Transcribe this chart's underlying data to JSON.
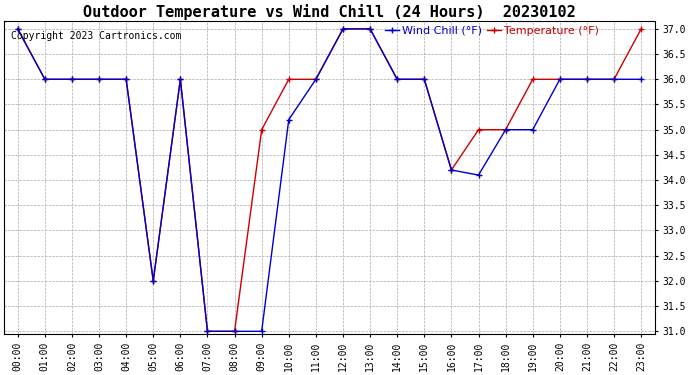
{
  "title": "Outdoor Temperature vs Wind Chill (24 Hours)  20230102",
  "copyright_text": "Copyright 2023 Cartronics.com",
  "legend_wind_chill": "Wind Chill (°F)",
  "legend_temperature": "Temperature (°F)",
  "hours": [
    "00:00",
    "01:00",
    "02:00",
    "03:00",
    "04:00",
    "05:00",
    "06:00",
    "07:00",
    "08:00",
    "09:00",
    "10:00",
    "11:00",
    "12:00",
    "13:00",
    "14:00",
    "15:00",
    "16:00",
    "17:00",
    "18:00",
    "19:00",
    "20:00",
    "21:00",
    "22:00",
    "23:00"
  ],
  "temperature": [
    37.0,
    36.0,
    36.0,
    36.0,
    36.0,
    32.0,
    36.0,
    31.0,
    31.0,
    35.0,
    36.0,
    36.0,
    37.0,
    37.0,
    36.0,
    36.0,
    34.2,
    35.0,
    35.0,
    36.0,
    36.0,
    36.0,
    36.0,
    37.0
  ],
  "wind_chill": [
    37.0,
    36.0,
    36.0,
    36.0,
    36.0,
    32.0,
    36.0,
    31.0,
    31.0,
    31.0,
    35.2,
    36.0,
    37.0,
    37.0,
    36.0,
    36.0,
    34.2,
    34.1,
    35.0,
    35.0,
    36.0,
    36.0,
    36.0,
    36.0
  ],
  "temp_color": "#cc0000",
  "wind_chill_color": "#0000cc",
  "ylim_min": 31.0,
  "ylim_max": 37.0,
  "ytick_step": 0.5,
  "background_color": "#ffffff",
  "grid_color": "#aaaaaa",
  "title_fontsize": 11,
  "legend_fontsize": 8,
  "tick_fontsize": 7,
  "copyright_fontsize": 7
}
